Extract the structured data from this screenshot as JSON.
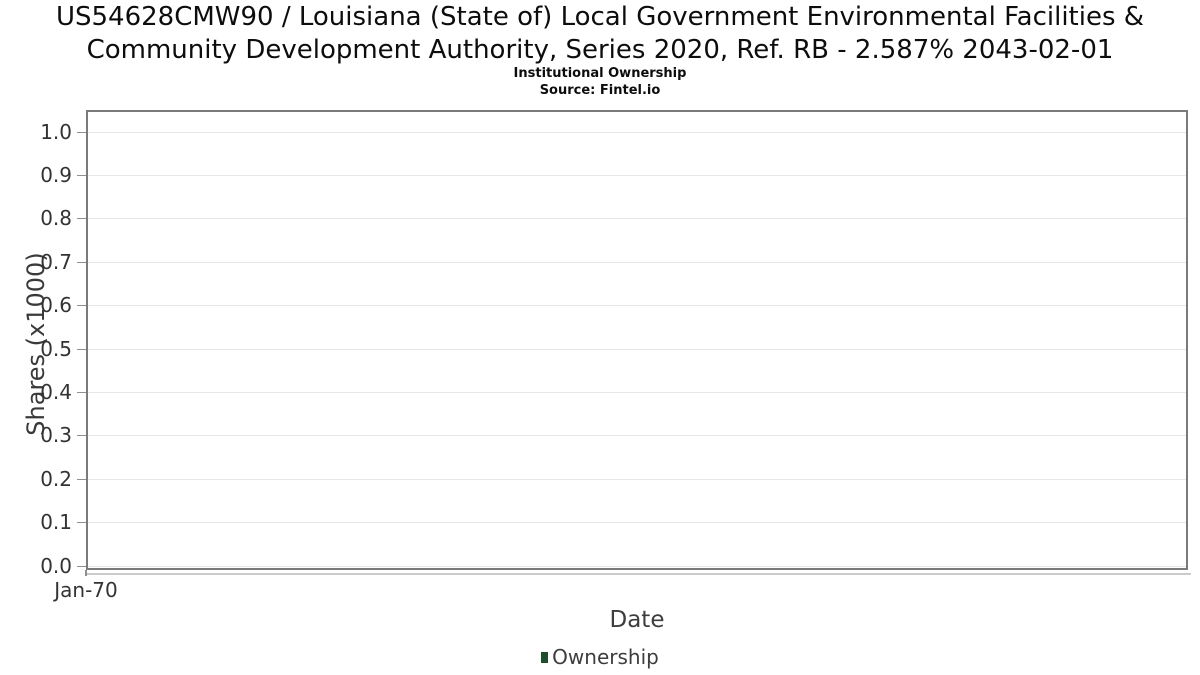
{
  "title": {
    "line1": "US54628CMW90 / Louisiana (State of) Local Government Environmental Facilities &",
    "line2": "Community Development Authority, Series 2020, Ref. RB - 2.587% 2043-02-01"
  },
  "subtitle": "Institutional Ownership",
  "source": "Source: Fintel.io",
  "chart_data": {
    "type": "bar",
    "title": "US54628CMW90 / Louisiana (State of) Local Government Environmental Facilities & Community Development Authority, Series 2020, Ref. RB - 2.587% 2043-02-01",
    "subtitle": "Institutional Ownership",
    "source": "Source: Fintel.io",
    "xlabel": "Date",
    "ylabel": "Shares (x1000)",
    "categories": [
      "Jan-70"
    ],
    "series": [
      {
        "name": "Ownership",
        "values": [
          0
        ],
        "color": "#1e4e2e"
      }
    ],
    "ylim": [
      0.0,
      1.0
    ],
    "ytick_step": 0.1,
    "yticks": [
      0.0,
      0.1,
      0.2,
      0.3,
      0.4,
      0.5,
      0.6,
      0.7,
      0.8,
      0.9,
      1.0
    ],
    "yticks_display": [
      "1.0",
      "0.9",
      "0.8",
      "0.7",
      "0.6",
      "0.5",
      "0.4",
      "0.3",
      "0.2",
      "0.1",
      "0.0"
    ],
    "xticks_display": [
      "Jan-70"
    ],
    "grid": "horizontal",
    "legend_position": "bottom"
  },
  "legend": {
    "label": "Ownership",
    "marker_color": "#1e4e2e"
  },
  "colors": {
    "background": "#ffffff",
    "plot_border": "#7a7a7a",
    "gridline": "#e6e6e6",
    "x_axis_line": "#cbcbcb",
    "tick_mark": "#8f8f8f",
    "title_text": "#0d0d0d",
    "axis_text": "#3a3a3a",
    "series_green": "#1e4e2e"
  }
}
